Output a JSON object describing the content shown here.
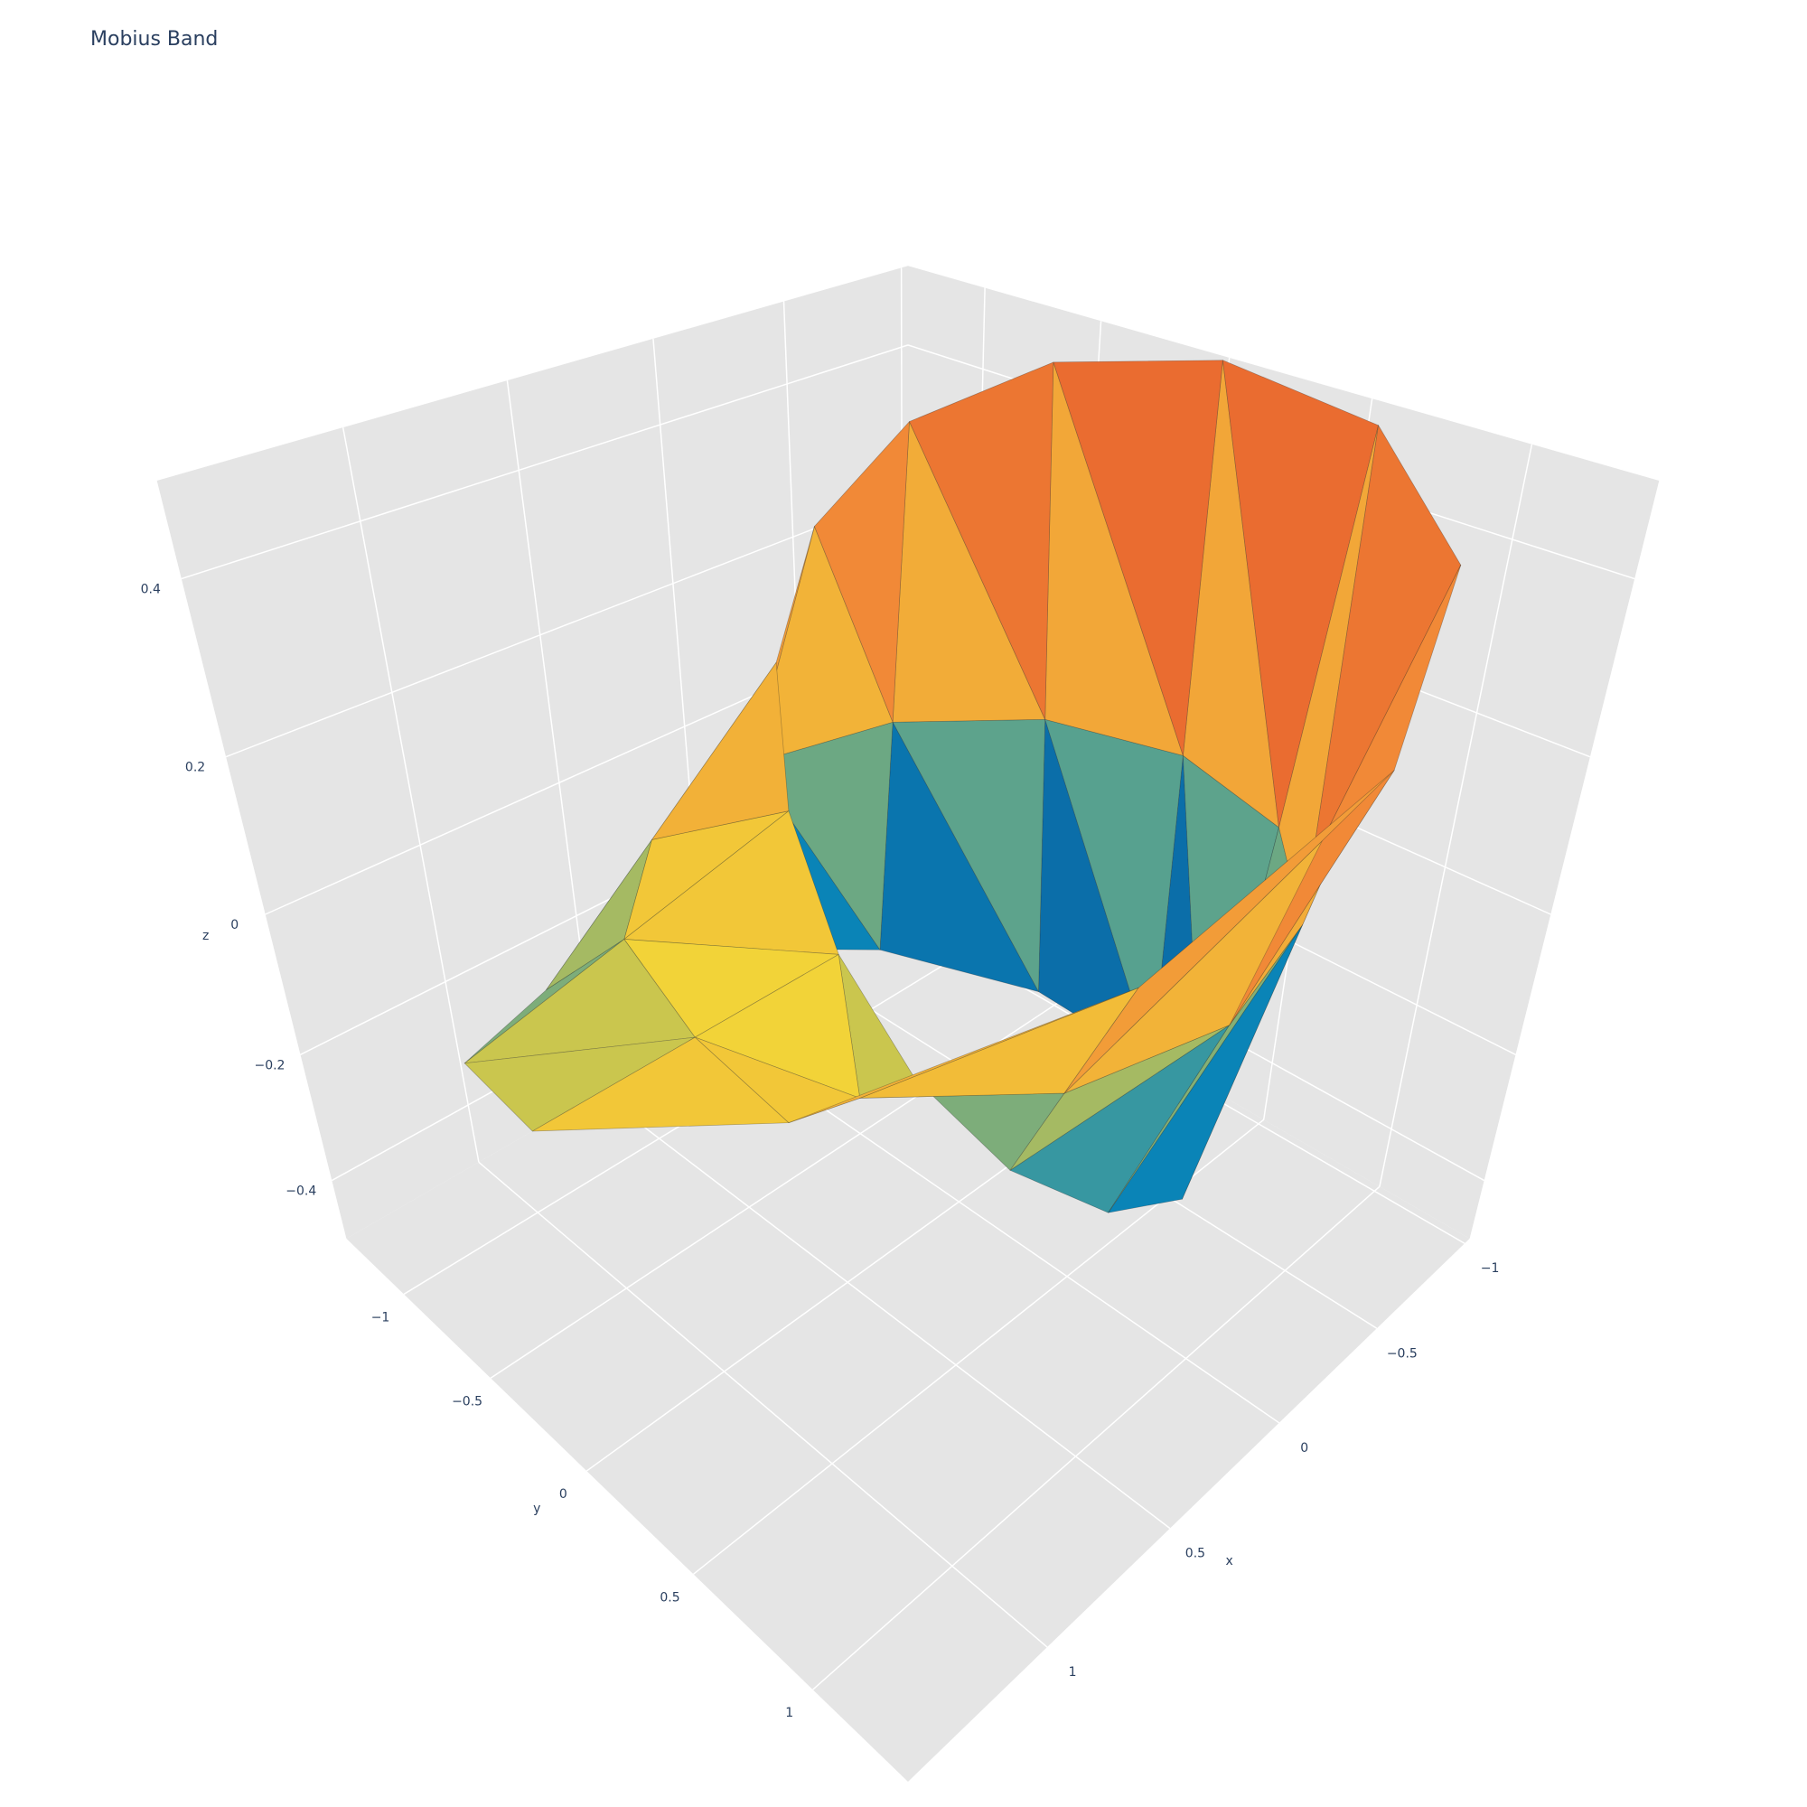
{
  "chart_data": {
    "type": "surface",
    "title": "Mobius Band",
    "x": [
      [
        0.5,
        0.448,
        0.284,
        0,
        -0.375,
        -0.754,
        -1,
        -0.978,
        -0.625,
        0,
        0.717,
        1.284,
        1.5
      ],
      [
        1,
        0.866,
        0.5,
        0,
        -0.5,
        -0.866,
        -1,
        -0.866,
        -0.5,
        0,
        0.5,
        0.866,
        1
      ],
      [
        1.5,
        1.284,
        0.717,
        0,
        -0.625,
        -0.978,
        -1,
        -0.754,
        -0.375,
        0,
        0.284,
        0.448,
        0.5
      ]
    ],
    "y": [
      [
        0,
        0.259,
        0.491,
        0.646,
        0.65,
        0.436,
        0,
        -0.565,
        -1.083,
        -1.354,
        -1.241,
        -0.742,
        0
      ],
      [
        0,
        0.5,
        0.866,
        1,
        0.866,
        0.5,
        0,
        -0.5,
        -0.866,
        -1,
        -0.866,
        -0.5,
        0
      ],
      [
        0,
        0.742,
        1.241,
        1.354,
        1.083,
        0.565,
        0,
        -0.436,
        -0.65,
        -0.646,
        -0.491,
        -0.259,
        0
      ]
    ],
    "z": [
      [
        0,
        -0.129,
        -0.25,
        -0.354,
        -0.433,
        -0.483,
        -0.5,
        -0.483,
        -0.433,
        -0.354,
        -0.25,
        -0.129,
        0
      ],
      [
        0,
        0,
        0,
        0,
        0,
        0,
        0,
        0,
        0,
        0,
        0,
        0,
        0
      ],
      [
        0,
        0.129,
        0.25,
        0.354,
        0.433,
        0.483,
        0.5,
        0.483,
        0.433,
        0.354,
        0.25,
        0.129,
        0
      ]
    ],
    "colorscale": [
      "#0c3383",
      "#0a88ba",
      "#f2d338",
      "#f28f38",
      "#d91e1e"
    ],
    "xlim": [
      -1.03,
      1.5
    ],
    "ylim": [
      -1.36,
      1.36
    ],
    "zlim": [
      -0.5,
      0.5
    ],
    "xticks": [
      {
        "value": -1,
        "label": "−1"
      },
      {
        "value": -0.5,
        "label": "−0.5"
      },
      0,
      0.5,
      1
    ],
    "yticks": [
      {
        "value": -1,
        "label": "−1"
      },
      {
        "value": -0.5,
        "label": "−0.5"
      },
      0,
      0.5,
      1
    ],
    "zticks": [
      {
        "value": -0.4,
        "label": "−0.4"
      },
      {
        "value": -0.2,
        "label": "−0.2"
      },
      0,
      0.2,
      0.4
    ],
    "xlabel": "x",
    "ylabel": "y",
    "zlabel": "z",
    "grid": true
  }
}
